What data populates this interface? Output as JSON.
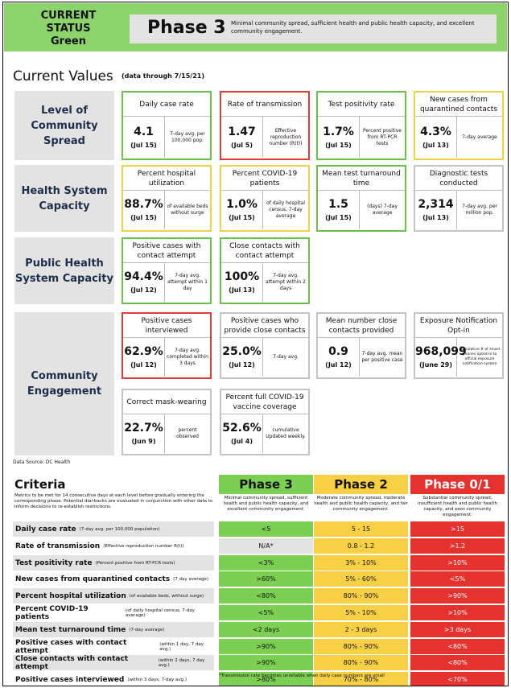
{
  "header": {
    "status_line1": "CURRENT STATUS",
    "status_line2": "Green",
    "phase": "Phase 3",
    "description": "Minimal community spread, sufficient health and public health capacity, and excellent community engagement."
  },
  "current_values": {
    "title": "Current Values",
    "date_note": "(data through 7/15/21)"
  },
  "categories": [
    {
      "label": "Level of Community Spread"
    },
    {
      "label": "Health System Capacity"
    },
    {
      "label": "Public Health System Capacity"
    },
    {
      "label": "Community Engagement"
    }
  ],
  "metrics": [
    {
      "title": "Daily case rate",
      "value": "4.1",
      "date": "(Jul 15)",
      "desc": "7-day avg. per 100,000 pop.",
      "status": "green"
    },
    {
      "title": "Rate of transmission",
      "value": "1.47",
      "date": "(Jul 5)",
      "desc": "Effective reproduction number (R(t))",
      "status": "red"
    },
    {
      "title": "Test positivity rate",
      "value": "1.7%",
      "date": "(Jul 15)",
      "desc": "Percent positive from RT-PCR tests",
      "status": "green"
    },
    {
      "title": "New cases from quarantined contacts",
      "value": "4.3%",
      "date": "(Jul 13)",
      "desc": "7-day average",
      "status": "yellow"
    },
    {
      "title": "Percent hospital utilization",
      "value": "88.7%",
      "date": "(Jul 15)",
      "desc": "of available beds without surge",
      "status": "yellow"
    },
    {
      "title": "Percent COVID-19 patients",
      "value": "1.0%",
      "date": "(Jul 15)",
      "desc": "of daily hospital census, 7-day average",
      "status": "yellow"
    },
    {
      "title": "Mean test turnaround time",
      "value": "1.5",
      "date": "(Jul 15)",
      "desc": "(days) 7-day average",
      "status": "green"
    },
    {
      "title": "Diagnostic tests conducted",
      "value": "2,314",
      "date": "(Jul 13)",
      "desc": "7-day avg. per million pop.",
      "status": "gray"
    },
    {
      "title": "Positive cases with contact attempt",
      "value": "94.4%",
      "date": "(Jul 12)",
      "desc": "7-day avg. attempt within 1 day",
      "status": "green"
    },
    {
      "title": "Close contacts with contact attempt",
      "value": "100%",
      "date": "(Jul 13)",
      "desc": "7-day avg. attempt within 2 days",
      "status": "green"
    },
    {
      "title": "Positive cases interviewed",
      "value": "62.9%",
      "date": "(Jul 12)",
      "desc": "7-day avg. completed within 3 days",
      "status": "red"
    },
    {
      "title": "Positive cases who provide close contacts",
      "value": "25.0%",
      "date": "(Jul 12)",
      "desc": "7-day avg.",
      "status": "gray"
    },
    {
      "title": "Mean number close contacts provided",
      "value": "0.9",
      "date": "(Jul 12)",
      "desc": "7-day avg. mean per positive case",
      "status": "gray"
    },
    {
      "title": "Exposure Notification Opt-in",
      "value": "968,099",
      "date": "(June 29)",
      "desc": "cumulative # of smart phones opted-in to official exposure notification system",
      "status": "gray"
    },
    {
      "title": "Correct mask-wearing",
      "value": "22.7%",
      "date": "(Jun 9)",
      "desc": "percent observed",
      "status": "gray"
    },
    {
      "title": "Percent full COVID-19 vaccine coverage",
      "value": "52.6%",
      "date": "(Jul 4)",
      "desc": "cumulative Updated weekly.",
      "status": "gray"
    }
  ],
  "source": "Data Source: DC Health",
  "criteria": {
    "title": "Criteria",
    "description": "Metrics to be met for 14 consecutive days at each level before gradually entering the corresponding phase. Potential dial-backs are evaluated in conjunction with other data to inform decisions to re-establish restrictions.",
    "phases": [
      {
        "name": "Phase 3",
        "desc": "Minimal community spread, sufficient health and public health capacity, and excellent community engagement.",
        "color": "#7ccf52"
      },
      {
        "name": "Phase 2",
        "desc": "Moderate community spread, moderate health and public health capacity, and fair community engagement.",
        "color": "#f7d046"
      },
      {
        "name": "Phase 0/1",
        "desc": "Substantial community spread, insufficient health and public health capacity, and poor community engagement.",
        "color": "#e5322e"
      }
    ],
    "rows": [
      {
        "name": "Daily case rate",
        "note": "(7-day avg. per 100,000 population)",
        "p3": "<5",
        "p2": "5 - 15",
        "p1": ">15"
      },
      {
        "name": "Rate of transmission",
        "note": "(Effective reproduction number R(t))",
        "p3": "N/A*",
        "p2": "0.8 - 1.2",
        "p1": ">1.2"
      },
      {
        "name": "Test positivity rate",
        "note": "(Percent positive from RT-PCR tests)",
        "p3": "<3%",
        "p2": "3% - 10%",
        "p1": ">10%"
      },
      {
        "name": "New cases from quarantined contacts",
        "note": "(7 day average)",
        "p3": ">60%",
        "p2": "5% - 60%",
        "p1": "<5%"
      },
      {
        "name": "Percent hospital utilization",
        "note": "(of available beds, without surge)",
        "p3": "<80%",
        "p2": "80% - 90%",
        "p1": ">90%"
      },
      {
        "name": "Percent COVID-19 patients",
        "note": "(of daily hospital census, 7-day average)",
        "p3": "<5%",
        "p2": "5% - 10%",
        "p1": ">10%"
      },
      {
        "name": "Mean test turnaround time",
        "note": "(7-day average)",
        "p3": "<2 days",
        "p2": "2 - 3 days",
        "p1": ">3 days"
      },
      {
        "name": "Positive cases with contact attempt",
        "note": "(within 1 day, 7 day avg.)",
        "p3": ">90%",
        "p2": "80% - 90%",
        "p1": "<80%"
      },
      {
        "name": "Close contacts with contact attempt",
        "note": "(within 2 days, 7 day avg.)",
        "p3": ">90%",
        "p2": "80% - 90%",
        "p1": "<80%"
      },
      {
        "name": "Positive cases interviewed",
        "note": "(within 3 days, 7-day avg.)",
        "p3": ">80%",
        "p2": "70% - 80%",
        "p1": "<70%"
      }
    ],
    "footnote": "*Transmission rate becomes unreliable when daily case numbers are small"
  }
}
